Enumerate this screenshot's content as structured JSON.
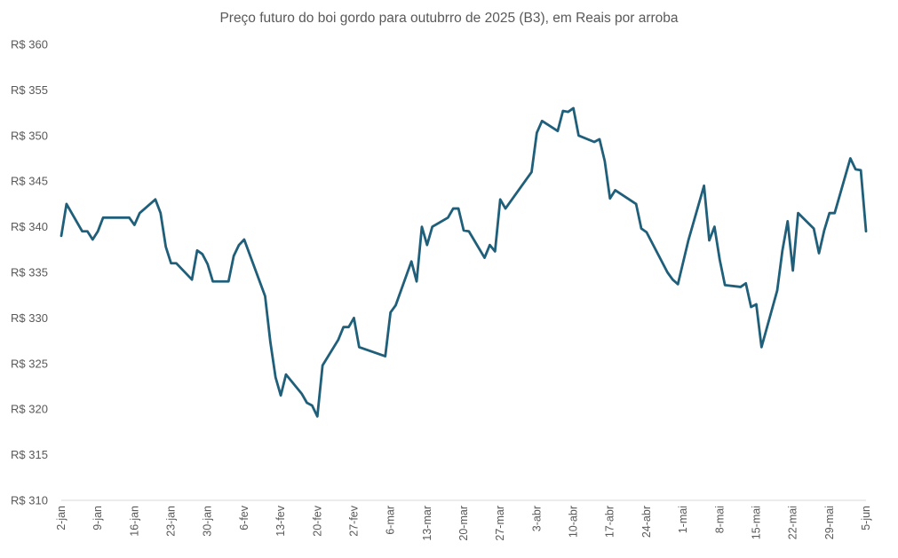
{
  "chart_data": {
    "type": "line",
    "title": "Preço futuro do boi gordo para outubrro de 2025 (B3), em Reais por arroba",
    "xlabel": "",
    "ylabel": "",
    "ylim": [
      310,
      360
    ],
    "y_ticks": [
      310,
      315,
      320,
      325,
      330,
      335,
      340,
      345,
      350,
      355,
      360
    ],
    "y_tick_prefix": "R$ ",
    "x_tick_labels": [
      "2-jan",
      "9-jan",
      "16-jan",
      "23-jan",
      "30-jan",
      "6-fev",
      "13-fev",
      "20-fev",
      "27-fev",
      "6-mar",
      "13-mar",
      "20-mar",
      "27-mar",
      "3-abr",
      "10-abr",
      "17-abr",
      "24-abr",
      "1-mai",
      "8-mai",
      "15-mai",
      "22-mai",
      "29-mai",
      "5-jun"
    ],
    "grid": false,
    "legend": "none",
    "line_color": "#1f5f7a",
    "series": [
      {
        "points": [
          [
            "2-jan",
            339.0
          ],
          [
            "3-jan",
            342.5
          ],
          [
            "6-jan",
            339.5
          ],
          [
            "7-jan",
            339.5
          ],
          [
            "8-jan",
            338.6
          ],
          [
            "9-jan",
            339.5
          ],
          [
            "10-jan",
            341.0
          ],
          [
            "13-jan",
            341.0
          ],
          [
            "14-jan",
            341.0
          ],
          [
            "15-jan",
            341.0
          ],
          [
            "16-jan",
            340.2
          ],
          [
            "17-jan",
            341.5
          ],
          [
            "20-jan",
            343.0
          ],
          [
            "21-jan",
            341.5
          ],
          [
            "22-jan",
            337.8
          ],
          [
            "23-jan",
            336.0
          ],
          [
            "24-jan",
            336.0
          ],
          [
            "27-jan",
            334.2
          ],
          [
            "28-jan",
            337.4
          ],
          [
            "29-jan",
            337.0
          ],
          [
            "30-jan",
            335.9
          ],
          [
            "31-jan",
            334.0
          ],
          [
            "3-fev",
            334.0
          ],
          [
            "4-fev",
            336.8
          ],
          [
            "5-fev",
            338.0
          ],
          [
            "6-fev",
            338.6
          ],
          [
            "10-fev",
            332.4
          ],
          [
            "11-fev",
            327.4
          ],
          [
            "12-fev",
            323.5
          ],
          [
            "13-fev",
            321.5
          ],
          [
            "14-fev",
            323.8
          ],
          [
            "17-fev",
            321.7
          ],
          [
            "18-fev",
            320.7
          ],
          [
            "19-fev",
            320.4
          ],
          [
            "20-fev",
            319.2
          ],
          [
            "21-fev",
            324.8
          ],
          [
            "24-fev",
            327.6
          ],
          [
            "25-fev",
            329.0
          ],
          [
            "26-fev",
            329.0
          ],
          [
            "27-fev",
            330.0
          ],
          [
            "28-fev",
            326.8
          ],
          [
            "5-mar",
            325.8
          ],
          [
            "6-mar",
            330.6
          ],
          [
            "7-mar",
            331.4
          ],
          [
            "10-mar",
            336.2
          ],
          [
            "11-mar",
            334.0
          ],
          [
            "12-mar",
            340.0
          ],
          [
            "13-mar",
            338.0
          ],
          [
            "14-mar",
            340.0
          ],
          [
            "17-mar",
            341.0
          ],
          [
            "18-mar",
            342.0
          ],
          [
            "19-mar",
            342.0
          ],
          [
            "20-mar",
            339.6
          ],
          [
            "21-mar",
            339.5
          ],
          [
            "24-mar",
            336.6
          ],
          [
            "25-mar",
            338.0
          ],
          [
            "26-mar",
            337.3
          ],
          [
            "27-mar",
            343.0
          ],
          [
            "28-mar",
            342.0
          ],
          [
            "2-abr",
            346.0
          ],
          [
            "3-abr",
            350.3
          ],
          [
            "4-abr",
            351.6
          ],
          [
            "7-abr",
            350.5
          ],
          [
            "8-abr",
            352.7
          ],
          [
            "9-abr",
            352.6
          ],
          [
            "10-abr",
            353.0
          ],
          [
            "11-abr",
            350.0
          ],
          [
            "14-abr",
            349.3
          ],
          [
            "15-abr",
            349.6
          ],
          [
            "16-abr",
            347.2
          ],
          [
            "17-abr",
            343.1
          ],
          [
            "18-abr",
            344.0
          ],
          [
            "22-abr",
            342.5
          ],
          [
            "23-abr",
            339.8
          ],
          [
            "24-abr",
            339.4
          ],
          [
            "28-abr",
            335.0
          ],
          [
            "29-abr",
            334.2
          ],
          [
            "30-abr",
            333.7
          ],
          [
            "2-mai",
            338.5
          ],
          [
            "5-mai",
            344.5
          ],
          [
            "6-mai",
            338.5
          ],
          [
            "7-mai",
            340.0
          ],
          [
            "8-mai",
            336.4
          ],
          [
            "9-mai",
            333.6
          ],
          [
            "12-mai",
            333.4
          ],
          [
            "13-mai",
            333.8
          ],
          [
            "14-mai",
            331.2
          ],
          [
            "15-mai",
            331.5
          ],
          [
            "16-mai",
            326.8
          ],
          [
            "19-mai",
            333.0
          ],
          [
            "20-mai",
            337.4
          ],
          [
            "21-mai",
            340.6
          ],
          [
            "22-mai",
            335.2
          ],
          [
            "23-mai",
            341.5
          ],
          [
            "26-mai",
            339.8
          ],
          [
            "27-mai",
            337.1
          ],
          [
            "28-mai",
            339.6
          ],
          [
            "29-mai",
            341.5
          ],
          [
            "30-mai",
            341.5
          ],
          [
            "2-jun",
            347.5
          ],
          [
            "3-jun",
            346.3
          ],
          [
            "4-jun",
            346.2
          ],
          [
            "5-jun",
            339.5
          ]
        ]
      }
    ]
  }
}
